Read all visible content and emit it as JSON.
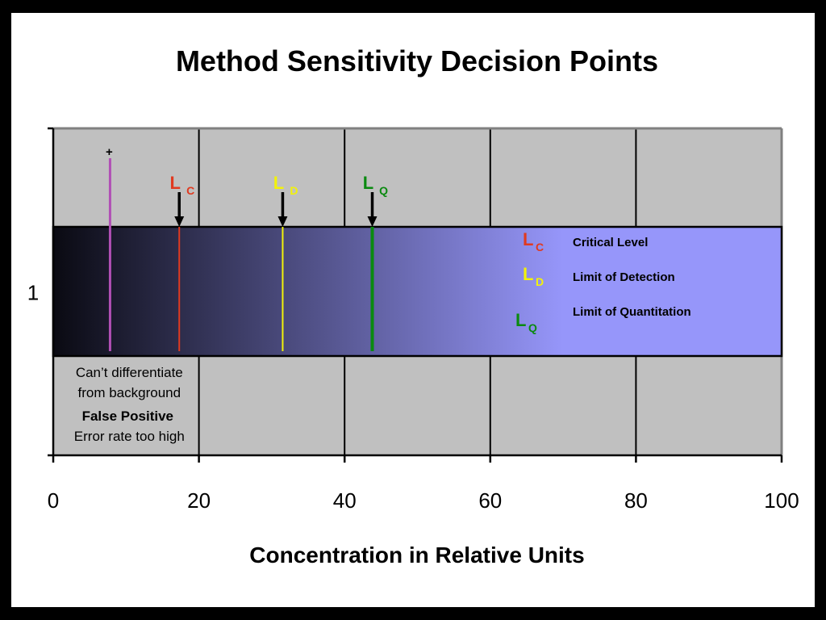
{
  "chart_data": {
    "type": "bar",
    "title": "Method Sensitivity Decision Points",
    "xlabel": "Concentration in Relative Units",
    "ylabel": "",
    "xlim": [
      0,
      100
    ],
    "x_ticks": [
      "0",
      "20",
      "40",
      "60",
      "80",
      "100"
    ],
    "y_ticks": [
      "1"
    ],
    "categories": [
      "1"
    ],
    "values": [
      100
    ],
    "gradient_colors": [
      "#0a0a12",
      "#9696fa"
    ],
    "markers": [
      {
        "key": "plus",
        "x": 7.8,
        "symbol": "+",
        "sub": "",
        "color": "#b04fb5",
        "arrow": false
      },
      {
        "key": "lc",
        "x": 17.3,
        "symbol": "L",
        "sub": "C",
        "color": "#e03a20",
        "arrow": true
      },
      {
        "key": "ld",
        "x": 31.5,
        "symbol": "L",
        "sub": "D",
        "color": "#f2f20a",
        "arrow": true
      },
      {
        "key": "lq",
        "x": 43.8,
        "symbol": "L",
        "sub": "Q",
        "color": "#0a8a10",
        "arrow": true
      }
    ],
    "legend": [
      {
        "symbol": "L",
        "sub": "C",
        "color": "#e03a20",
        "text": "Critical Level"
      },
      {
        "symbol": "L",
        "sub": "D",
        "color": "#f2f20a",
        "text": "Limit of Detection"
      },
      {
        "symbol": "L",
        "sub": "Q",
        "color": "#0a8a10",
        "text": "Limit of Quantitation"
      }
    ],
    "annotation": {
      "line1": "Can’t differentiate",
      "line2": "from background",
      "line3": "False Positive",
      "line4": "Error rate too high"
    },
    "grid": true,
    "plot_background": "#c0c0c0"
  }
}
